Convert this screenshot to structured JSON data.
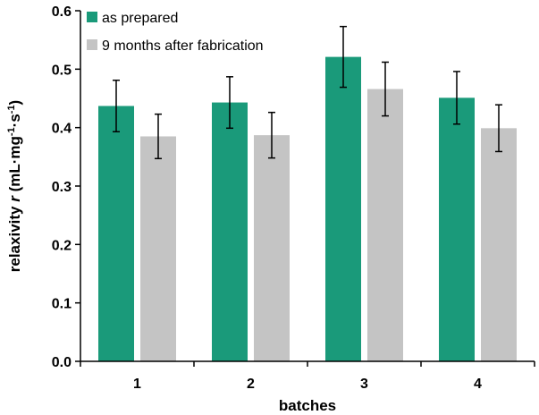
{
  "chart_data": {
    "type": "bar",
    "categories": [
      "1",
      "2",
      "3",
      "4"
    ],
    "series": [
      {
        "name": "as prepared",
        "values": [
          0.437,
          0.443,
          0.521,
          0.451
        ],
        "errors": [
          0.044,
          0.044,
          0.052,
          0.045
        ],
        "color": "#1a9a7a"
      },
      {
        "name": "9 months after fabrication",
        "values": [
          0.385,
          0.387,
          0.466,
          0.399
        ],
        "errors": [
          0.038,
          0.039,
          0.046,
          0.04
        ],
        "color": "#c4c4c4"
      }
    ],
    "title": "",
    "xlabel": "batches",
    "ylabel": "relaxivity r (mL·mg⁻¹·s⁻¹)",
    "ylabel_parts": {
      "main": "relaxivity ",
      "var": "r",
      "open": " (mL·mg",
      "sup1": "-1",
      "mid": "·s",
      "sup2": "-1",
      "close": ")"
    },
    "ylim": [
      0.0,
      0.6
    ],
    "yticks": [
      "0.0",
      "0.1",
      "0.2",
      "0.3",
      "0.4",
      "0.5",
      "0.6"
    ],
    "grid": false,
    "legend_position": "top-left"
  }
}
